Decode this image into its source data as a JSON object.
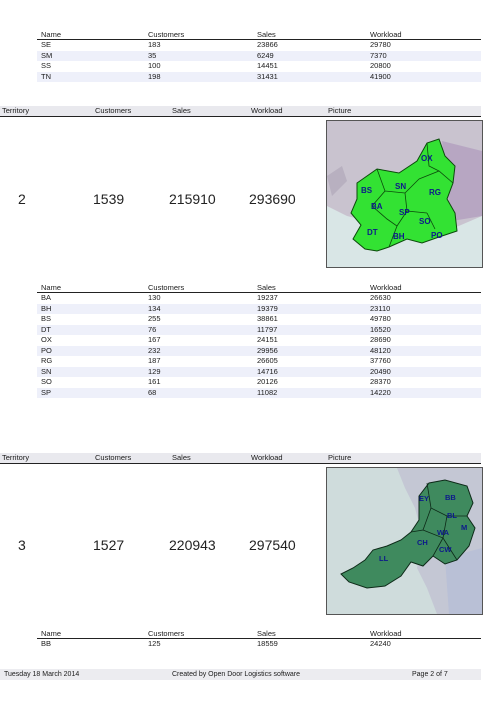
{
  "columns": {
    "name": "Name",
    "customers": "Customers",
    "sales": "Sales",
    "workload": "Workload",
    "territory": "Territory",
    "picture": "Picture"
  },
  "table_top": {
    "rows": [
      {
        "name": "SE",
        "customers": "183",
        "sales": "23866",
        "workload": "29780"
      },
      {
        "name": "SM",
        "customers": "35",
        "sales": "6249",
        "workload": "7370"
      },
      {
        "name": "SS",
        "customers": "100",
        "sales": "14451",
        "workload": "20800"
      },
      {
        "name": "TN",
        "customers": "198",
        "sales": "31431",
        "workload": "41900"
      }
    ]
  },
  "territory2": {
    "territory": "2",
    "customers": "1539",
    "sales": "215910",
    "workload": "293690",
    "map_labels": [
      "OX",
      "BS",
      "SN",
      "RG",
      "BA",
      "SP",
      "SO",
      "DT",
      "BH",
      "PO"
    ],
    "map_colors": {
      "fill": "#33e233",
      "stroke": "#0b4a0b",
      "label": "#0d1a8a",
      "sea": "#d9e6e6",
      "land": "#c9c3cf"
    }
  },
  "table_mid": {
    "rows": [
      {
        "name": "BA",
        "customers": "130",
        "sales": "19237",
        "workload": "26630"
      },
      {
        "name": "BH",
        "customers": "134",
        "sales": "19379",
        "workload": "23110"
      },
      {
        "name": "BS",
        "customers": "255",
        "sales": "38861",
        "workload": "49780"
      },
      {
        "name": "DT",
        "customers": "76",
        "sales": "11797",
        "workload": "16520"
      },
      {
        "name": "OX",
        "customers": "167",
        "sales": "24151",
        "workload": "28690"
      },
      {
        "name": "PO",
        "customers": "232",
        "sales": "29956",
        "workload": "48120"
      },
      {
        "name": "RG",
        "customers": "187",
        "sales": "26605",
        "workload": "37760"
      },
      {
        "name": "SN",
        "customers": "129",
        "sales": "14716",
        "workload": "20490"
      },
      {
        "name": "SO",
        "customers": "161",
        "sales": "20126",
        "workload": "28370"
      },
      {
        "name": "SP",
        "customers": "68",
        "sales": "11082",
        "workload": "14220"
      }
    ]
  },
  "territory3": {
    "territory": "3",
    "customers": "1527",
    "sales": "220943",
    "workload": "297540",
    "map_labels": [
      "EY",
      "BB",
      "BL",
      "M",
      "LL",
      "CH",
      "WA",
      "CW"
    ],
    "map_colors": {
      "fill": "#3f8a5e",
      "stroke": "#0d2a18",
      "label": "#0d1a8a",
      "sea": "#cfdcdc",
      "land": "#c4c7d4"
    }
  },
  "table_bottom": {
    "rows": [
      {
        "name": "BB",
        "customers": "125",
        "sales": "18559",
        "workload": "24240"
      }
    ]
  },
  "footer": {
    "date": "Tuesday 18 March 2014",
    "credit": "Created by Open Door Logistics software",
    "page": "Page 2 of 7"
  }
}
